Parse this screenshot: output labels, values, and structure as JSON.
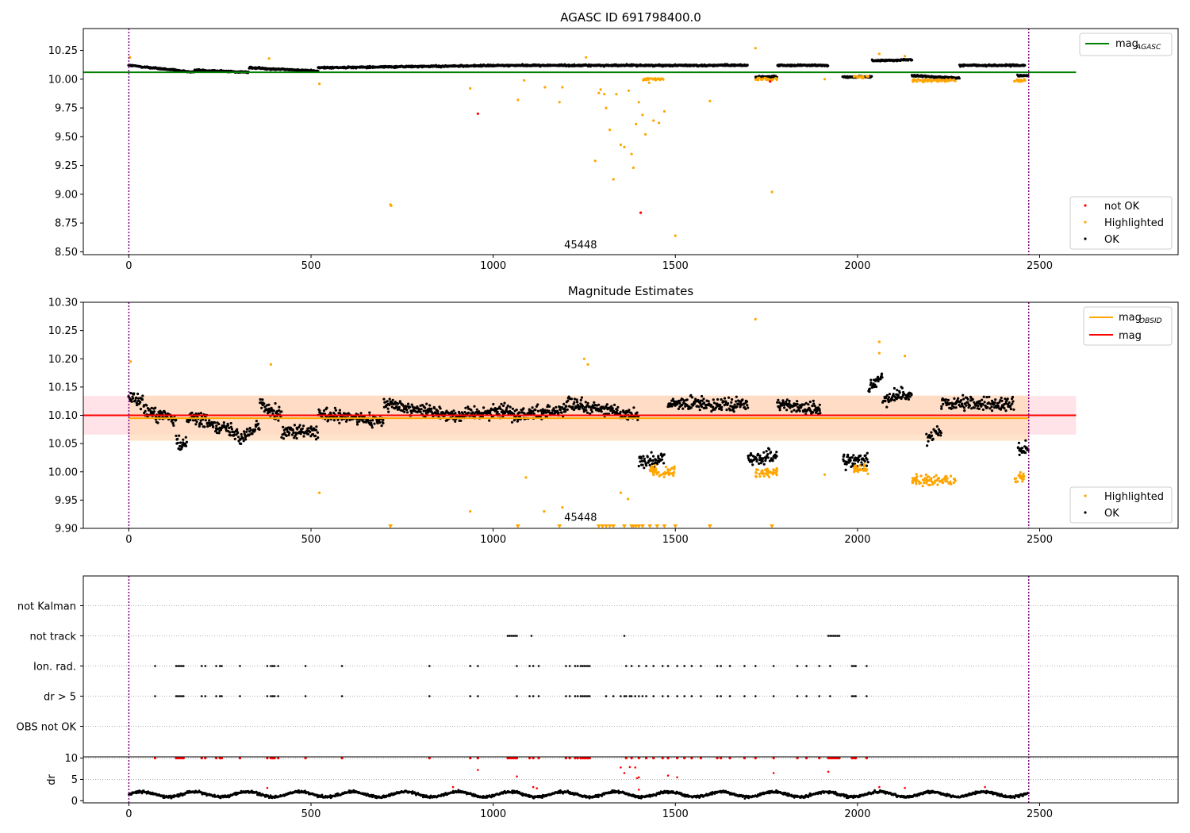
{
  "figure": {
    "width": 1500,
    "height": 1050
  },
  "colors": {
    "ok": "#000000",
    "highlighted": "#ffa500",
    "not_ok": "#ff0000",
    "agasc_line": "#008000",
    "obsid_line": "#ffa500",
    "mag_line": "#ff0000",
    "band_mag": "#ffc0cb",
    "band_obsid": "#ffdab9",
    "vline": "#800080",
    "grid": "#b0b0b0"
  },
  "chart_data": [
    {
      "id": "agasc",
      "type": "scatter",
      "title": "AGASC ID 691798400.0",
      "xlabel": "",
      "ylabel": "",
      "xlim": [
        -125,
        2880
      ],
      "ylim": [
        8.475,
        10.44
      ],
      "xticks": [
        0,
        500,
        1000,
        1500,
        2000,
        2500
      ],
      "yticks": [
        8.5,
        8.75,
        9.0,
        9.25,
        9.5,
        9.75,
        10.0,
        10.25
      ],
      "yticklabels": [
        "8.50",
        "8.75",
        "9.00",
        "9.25",
        "9.50",
        "9.75",
        "10.00",
        "10.25"
      ],
      "annotation": {
        "text": "45448",
        "x": 1240,
        "y": 8.53
      },
      "vlines": [
        0,
        2470
      ],
      "hline": {
        "value": 10.06,
        "x": [
          -125,
          2600
        ],
        "label_base": "mag",
        "label_sub": "AGASC"
      },
      "legend_upper": {
        "entries": [
          {
            "base": "mag",
            "sub": "AGASC"
          }
        ],
        "position": "upper-right"
      },
      "legend_lower": {
        "entries": [
          "not OK",
          "Highlighted",
          "OK"
        ],
        "position": "lower-right"
      },
      "series": [
        {
          "name": "OK",
          "baseline": 10.1,
          "x_range": [
            0,
            2470
          ],
          "segments": [
            [
              0,
              180,
              10.12,
              10.06
            ],
            [
              180,
              330,
              10.08,
              10.06
            ],
            [
              330,
              520,
              10.1,
              10.07
            ],
            [
              520,
              1050,
              10.1,
              10.12
            ],
            [
              1050,
              1700,
              10.12,
              10.12
            ],
            [
              1720,
              1780,
              10.02,
              10.02
            ],
            [
              1780,
              1920,
              10.12,
              10.12
            ],
            [
              1960,
              2040,
              10.02,
              10.02
            ],
            [
              2040,
              2150,
              10.16,
              10.17
            ],
            [
              2150,
              2280,
              10.03,
              10.01
            ],
            [
              2280,
              2460,
              10.12,
              10.12
            ],
            [
              2440,
              2470,
              10.03,
              10.03
            ]
          ]
        },
        {
          "name": "Highlighted",
          "points": [
            [
              3,
              10.19
            ],
            [
              385,
              10.18
            ],
            [
              523,
              9.96
            ],
            [
              718,
              8.91
            ],
            [
              720,
              8.9
            ],
            [
              937,
              9.92
            ],
            [
              1068,
              9.82
            ],
            [
              1085,
              9.99
            ],
            [
              1142,
              9.93
            ],
            [
              1182,
              9.8
            ],
            [
              1190,
              9.93
            ],
            [
              1255,
              10.19
            ],
            [
              1280,
              9.29
            ],
            [
              1290,
              9.88
            ],
            [
              1295,
              9.91
            ],
            [
              1305,
              9.87
            ],
            [
              1310,
              9.75
            ],
            [
              1320,
              9.56
            ],
            [
              1330,
              9.13
            ],
            [
              1338,
              9.87
            ],
            [
              1350,
              9.43
            ],
            [
              1360,
              9.41
            ],
            [
              1372,
              9.9
            ],
            [
              1380,
              9.35
            ],
            [
              1385,
              9.23
            ],
            [
              1392,
              9.61
            ],
            [
              1400,
              9.8
            ],
            [
              1410,
              9.69
            ],
            [
              1418,
              9.52
            ],
            [
              1428,
              9.97
            ],
            [
              1440,
              9.64
            ],
            [
              1455,
              9.62
            ],
            [
              1470,
              9.72
            ],
            [
              1500,
              8.64
            ],
            [
              1595,
              9.81
            ],
            [
              1720,
              10.27
            ],
            [
              1765,
              9.02
            ],
            [
              1910,
              10.0
            ],
            [
              2060,
              10.22
            ],
            [
              2130,
              10.2
            ]
          ],
          "clusters": [
            [
              1410,
              1470,
              10.0
            ],
            [
              1720,
              1780,
              10.0
            ],
            [
              1990,
              2030,
              10.02
            ],
            [
              2150,
              2270,
              9.99
            ],
            [
              2430,
              2460,
              9.99
            ]
          ]
        },
        {
          "name": "not OK",
          "points": [
            [
              958,
              9.7
            ],
            [
              1405,
              8.84
            ],
            [
              1760,
              9.98
            ]
          ]
        }
      ]
    },
    {
      "id": "mag_estimates",
      "type": "scatter",
      "title": "Magnitude Estimates",
      "xlabel": "",
      "ylabel": "",
      "xlim": [
        -125,
        2880
      ],
      "ylim": [
        9.9,
        10.3
      ],
      "xticks": [
        0,
        500,
        1000,
        1500,
        2000,
        2500
      ],
      "yticks": [
        9.9,
        9.95,
        10.0,
        10.05,
        10.1,
        10.15,
        10.2,
        10.25,
        10.3
      ],
      "yticklabels": [
        "9.90",
        "9.95",
        "10.00",
        "10.05",
        "10.10",
        "10.15",
        "10.20",
        "10.25",
        "10.30"
      ],
      "annotation": {
        "text": "45448",
        "x": 1240,
        "y": 9.913
      },
      "vlines": [
        0,
        2470
      ],
      "mag": {
        "value": 10.1,
        "band": [
          10.066,
          10.134
        ],
        "x": [
          -125,
          2600
        ]
      },
      "mag_obsid": {
        "value": 10.095,
        "band": [
          10.055,
          10.135
        ],
        "x": [
          0,
          2470
        ]
      },
      "legend_upper": {
        "entries": [
          {
            "base": "mag",
            "sub": "OBSID"
          },
          {
            "base": "mag",
            "sub": ""
          }
        ],
        "position": "upper-right"
      },
      "legend_lower": {
        "entries": [
          "Highlighted",
          "OK"
        ],
        "position": "lower-right"
      },
      "series": [
        {
          "name": "OK",
          "x_range": [
            0,
            2470
          ],
          "segments": [
            [
              0,
              40,
              10.135,
              10.125
            ],
            [
              40,
              130,
              10.11,
              10.09
            ],
            [
              130,
              160,
              10.05,
              10.05
            ],
            [
              160,
              300,
              10.1,
              10.07
            ],
            [
              300,
              360,
              10.06,
              10.08
            ],
            [
              360,
              420,
              10.12,
              10.1
            ],
            [
              420,
              520,
              10.07,
              10.07
            ],
            [
              520,
              700,
              10.1,
              10.09
            ],
            [
              700,
              900,
              10.12,
              10.1
            ],
            [
              900,
              1050,
              10.1,
              10.11
            ],
            [
              1050,
              1200,
              10.1,
              10.11
            ],
            [
              1200,
              1400,
              10.12,
              10.1
            ],
            [
              1400,
              1470,
              10.02,
              10.02
            ],
            [
              1480,
              1700,
              10.12,
              10.12
            ],
            [
              1700,
              1780,
              10.02,
              10.03
            ],
            [
              1780,
              1900,
              10.12,
              10.11
            ],
            [
              1960,
              2030,
              10.02,
              10.02
            ],
            [
              2030,
              2070,
              10.15,
              10.17
            ],
            [
              2070,
              2150,
              10.13,
              10.14
            ],
            [
              2190,
              2230,
              10.06,
              10.07
            ],
            [
              2230,
              2430,
              10.12,
              10.12
            ],
            [
              2440,
              2470,
              10.04,
              10.04
            ]
          ]
        },
        {
          "name": "Highlighted",
          "points": [
            [
              5,
              10.195
            ],
            [
              390,
              10.19
            ],
            [
              523,
              9.963
            ],
            [
              937,
              9.93
            ],
            [
              1090,
              9.99
            ],
            [
              1140,
              9.93
            ],
            [
              1190,
              9.937
            ],
            [
              1250,
              10.2
            ],
            [
              1260,
              10.19
            ],
            [
              1350,
              9.963
            ],
            [
              1370,
              9.952
            ],
            [
              1720,
              10.27
            ],
            [
              1910,
              9.995
            ],
            [
              2060,
              10.23
            ],
            [
              2060,
              10.21
            ],
            [
              2130,
              10.205
            ]
          ],
          "clusters": [
            [
              1430,
              1500,
              10.0
            ],
            [
              1720,
              1780,
              10.0
            ],
            [
              1990,
              2030,
              10.005
            ],
            [
              2150,
              2270,
              9.985
            ],
            [
              2430,
              2460,
              9.99
            ]
          ],
          "clipped_x": [
            718,
            1068,
            1182,
            1290,
            1300,
            1310,
            1320,
            1330,
            1360,
            1380,
            1385,
            1392,
            1400,
            1410,
            1430,
            1450,
            1470,
            1500,
            1595,
            1765
          ]
        }
      ]
    },
    {
      "id": "flags",
      "type": "scatter",
      "title": "",
      "xlabel": "",
      "ylabel": "",
      "xlim": [
        -125,
        2880
      ],
      "xticks": [
        0,
        500,
        1000,
        1500,
        2000,
        2500
      ],
      "vlines": [
        0,
        2470
      ],
      "categories": [
        "not Kalman",
        "not track",
        "Ion. rad.",
        "dr > 5",
        "OBS not OK"
      ],
      "series": [
        {
          "name": "not Kalman",
          "x": []
        },
        {
          "name": "not track",
          "x": [
            1040,
            1045,
            1050,
            1055,
            1060,
            1065,
            1105,
            1360,
            1920,
            1925,
            1930,
            1935,
            1940,
            1945,
            1950
          ]
        },
        {
          "name": "Ion. rad.",
          "x": [
            72,
            130,
            135,
            140,
            145,
            150,
            200,
            210,
            240,
            250,
            255,
            305,
            380,
            390,
            395,
            400,
            410,
            485,
            585,
            825,
            937,
            958,
            1065,
            1100,
            1110,
            1125,
            1200,
            1210,
            1225,
            1232,
            1240,
            1245,
            1250,
            1255,
            1260,
            1265,
            1365,
            1380,
            1400,
            1420,
            1440,
            1465,
            1480,
            1505,
            1525,
            1545,
            1570,
            1615,
            1625,
            1650,
            1690,
            1720,
            1770,
            1835,
            1860,
            1895,
            1925,
            1985,
            1990,
            1995,
            2025
          ]
        },
        {
          "name": "dr > 5",
          "x": [
            72,
            130,
            135,
            140,
            145,
            150,
            200,
            210,
            240,
            250,
            255,
            305,
            380,
            390,
            395,
            400,
            410,
            485,
            585,
            825,
            937,
            958,
            1065,
            1100,
            1110,
            1125,
            1200,
            1210,
            1225,
            1232,
            1240,
            1245,
            1250,
            1255,
            1260,
            1265,
            1310,
            1330,
            1350,
            1360,
            1365,
            1375,
            1380,
            1390,
            1400,
            1410,
            1420,
            1440,
            1465,
            1480,
            1505,
            1525,
            1545,
            1570,
            1615,
            1625,
            1650,
            1690,
            1720,
            1770,
            1835,
            1860,
            1895,
            1925,
            1985,
            1990,
            1995,
            2025
          ]
        },
        {
          "name": "OBS not OK",
          "x": []
        }
      ]
    },
    {
      "id": "dr",
      "type": "scatter",
      "title": "",
      "xlabel": "",
      "ylabel": "dr",
      "xlim": [
        -125,
        2880
      ],
      "ylim": [
        -0.5,
        10.3
      ],
      "xticks": [
        0,
        500,
        1000,
        1500,
        2000,
        2500
      ],
      "xticklabels": [
        "0",
        "500",
        "1000",
        "1500",
        "2000",
        "2500"
      ],
      "yticks": [
        0,
        5,
        10
      ],
      "yticklabels": [
        "0",
        "5",
        "10"
      ],
      "vlines": [
        0,
        2470
      ],
      "series": [
        {
          "name": "dr",
          "x_range": [
            0,
            2470
          ],
          "baseline": 1.5
        },
        {
          "name": "dr flagged",
          "clipped_at": 10,
          "x": [
            72,
            130,
            135,
            140,
            145,
            150,
            200,
            210,
            240,
            250,
            255,
            305,
            380,
            390,
            395,
            400,
            410,
            485,
            585,
            825,
            937,
            958,
            1040,
            1045,
            1050,
            1055,
            1060,
            1065,
            1100,
            1110,
            1125,
            1200,
            1210,
            1225,
            1232,
            1240,
            1245,
            1250,
            1255,
            1260,
            1265,
            1365,
            1380,
            1400,
            1420,
            1440,
            1465,
            1480,
            1505,
            1525,
            1545,
            1570,
            1615,
            1625,
            1650,
            1690,
            1720,
            1770,
            1835,
            1860,
            1895,
            1920,
            1925,
            1930,
            1935,
            1940,
            1945,
            1950,
            1985,
            1990,
            1995,
            2025
          ],
          "points": [
            [
              958,
              7.2
            ],
            [
              1065,
              5.7
            ],
            [
              1350,
              7.8
            ],
            [
              1360,
              6.5
            ],
            [
              1375,
              7.9
            ],
            [
              1390,
              7.8
            ],
            [
              1395,
              5.3
            ],
            [
              1400,
              5.5
            ],
            [
              1480,
              5.9
            ],
            [
              1505,
              5.5
            ],
            [
              1770,
              6.5
            ],
            [
              1920,
              6.8
            ],
            [
              1110,
              3.2
            ],
            [
              1120,
              2.9
            ],
            [
              380,
              3.0
            ],
            [
              890,
              3.2
            ],
            [
              2060,
              3.2
            ],
            [
              2130,
              3.0
            ],
            [
              2350,
              3.2
            ],
            [
              1400,
              2.6
            ]
          ]
        }
      ]
    }
  ]
}
